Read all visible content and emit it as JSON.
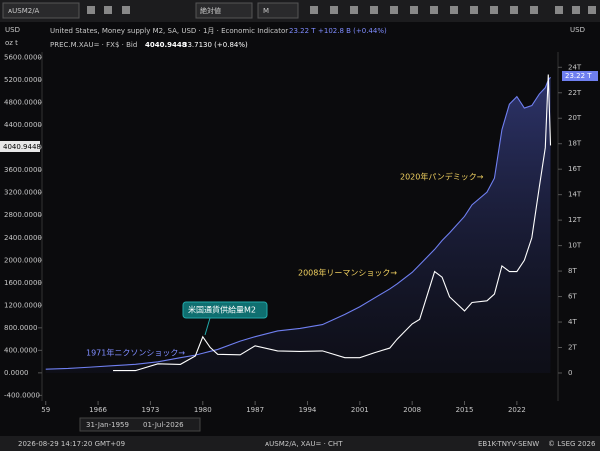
{
  "toolbar": {
    "symbol": "ᴀUSM2/A",
    "scale_mode": "絶対値",
    "interval": "M"
  },
  "legend": {
    "m2_name": "United States, Money supply M2, SA, USD · 1月 · Economic Indicator",
    "m2_last": "23.22 T",
    "m2_change": "+102.8 B (+0.44%)",
    "gold_name": "PREC.M.XAU= · FX$ · Bid",
    "gold_last": "4040.9448",
    "gold_change": "33.7130 (+0.84%)"
  },
  "axes": {
    "left_currency": "USD",
    "left_unit": "oz t",
    "right_currency": "USD",
    "left_price_tag": "4040.9448",
    "right_price_tag": "23.22 T"
  },
  "range": {
    "from": "31-Jan-1959",
    "to": "01-Jul-2026"
  },
  "status": {
    "time": "2026-08-29 14:17:20 GMT+09",
    "instruments": "ᴀUSM2/A, XAU= · CHT",
    "code": "EB1K-TNYV-SENW",
    "copyright": "© LSEG 2026"
  },
  "chart_data": {
    "type": "line",
    "annotations": [
      "1971年ニクソンショック→",
      "米国通貨供給量M2",
      "2008年リーマンショック→",
      "2020年パンデミック→"
    ],
    "x": [
      1959,
      1962,
      1965,
      1968,
      1971,
      1974,
      1977,
      1979,
      1980,
      1981,
      1982,
      1985,
      1987,
      1990,
      1993,
      1996,
      1999,
      2001,
      2003,
      2005,
      2006,
      2008,
      2009,
      2011,
      2012,
      2013,
      2015,
      2016,
      2018,
      2019,
      2020,
      2021,
      2022,
      2023,
      2024,
      2025,
      2025.8,
      2026.2,
      2026.5
    ],
    "series": [
      {
        "name": "PREC.M.XAU=",
        "color": "#ffffff",
        "values": [
          null,
          null,
          null,
          40,
          40,
          160,
          150,
          300,
          640,
          450,
          330,
          320,
          480,
          390,
          380,
          390,
          270,
          270,
          360,
          440,
          600,
          870,
          950,
          1800,
          1700,
          1350,
          1100,
          1250,
          1280,
          1400,
          1900,
          1800,
          1800,
          2000,
          2400,
          3300,
          4000,
          5300,
          4040
        ]
      },
      {
        "name": "United States, Money supply M2",
        "color": "#6f7ff0",
        "axis": "y2",
        "values": [
          0.3,
          0.36,
          0.46,
          0.57,
          0.68,
          0.88,
          1.2,
          1.4,
          1.55,
          1.7,
          1.85,
          2.5,
          2.85,
          3.3,
          3.5,
          3.8,
          4.6,
          5.2,
          5.9,
          6.6,
          7.0,
          7.9,
          8.5,
          9.7,
          10.4,
          11.0,
          12.3,
          13.2,
          14.2,
          15.3,
          19.1,
          21.1,
          21.7,
          20.8,
          21.0,
          21.9,
          22.4,
          23.0,
          23.22
        ]
      }
    ],
    "xlim": [
      1958.5,
      2027.5
    ],
    "xticks": [
      {
        "value": 1959,
        "label": "59"
      },
      1966,
      1973,
      1980,
      1987,
      1994,
      2001,
      2008,
      2015,
      2022
    ],
    "ylim": [
      -500,
      5700
    ],
    "yticks": [
      {
        "value": -400,
        "label": "-400.0000"
      },
      {
        "value": 0,
        "label": "0.0000"
      },
      {
        "value": 400,
        "label": "400.0000"
      },
      {
        "value": 800,
        "label": "800.0000"
      },
      {
        "value": 1200,
        "label": "1200.0000"
      },
      {
        "value": 1600,
        "label": "1600.0000"
      },
      {
        "value": 2000,
        "label": "2000.0000"
      },
      {
        "value": 2400,
        "label": "2400.0000"
      },
      {
        "value": 2800,
        "label": "2800.0000"
      },
      {
        "value": 3200,
        "label": "3200.0000"
      },
      {
        "value": 3600,
        "label": "3600.0000"
      },
      {
        "value": 4000,
        "label": "4000.0000"
      },
      {
        "value": 4400,
        "label": "4400.0000"
      },
      {
        "value": 4800,
        "label": "4800.0000"
      },
      {
        "value": 5200,
        "label": "5200.0000"
      },
      {
        "value": 5600,
        "label": "5600.0000"
      }
    ],
    "y2lim": [
      -2.2,
      25.2
    ],
    "y2ticks": [
      0,
      {
        "value": 2,
        "label": "2T"
      },
      {
        "value": 4,
        "label": "4T"
      },
      {
        "value": 6,
        "label": "6T"
      },
      {
        "value": 8,
        "label": "8T"
      },
      {
        "value": 10,
        "label": "10T"
      },
      {
        "value": 12,
        "label": "12T"
      },
      {
        "value": 14,
        "label": "14T"
      },
      {
        "value": 16,
        "label": "16T"
      },
      {
        "value": 18,
        "label": "18T"
      },
      {
        "value": 20,
        "label": "20T"
      },
      {
        "value": 22,
        "label": "22T"
      },
      {
        "value": 24,
        "label": "24T"
      }
    ]
  }
}
